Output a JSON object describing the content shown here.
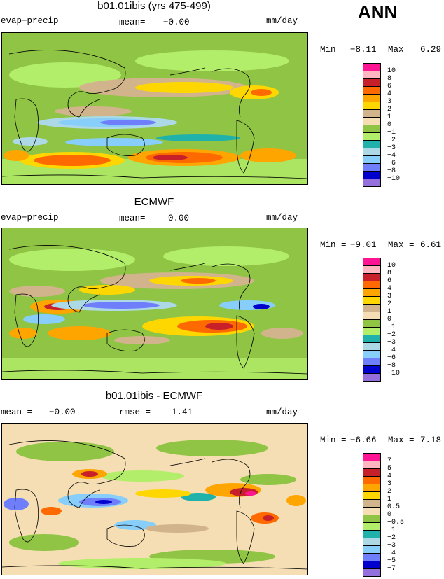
{
  "season": "ANN",
  "panels": [
    {
      "title": "b01.01ibis (yrs 475-499)",
      "left_label": "evap−precip",
      "center_label": "mean=",
      "center_value": "−0.00",
      "extra_label": "",
      "extra_value": "",
      "units": "mm/day",
      "min_label": "Min =",
      "min_value": "−8.11",
      "max_label": "Max =",
      "max_value": "6.29",
      "colorbar": {
        "ticks": [
          "10",
          "8",
          "6",
          "4",
          "3",
          "2",
          "1",
          "0",
          "−1",
          "−2",
          "−3",
          "−4",
          "−6",
          "−8",
          "−10"
        ],
        "colors": [
          "#ff1493",
          "#ffb6c1",
          "#c8202a",
          "#ff6a00",
          "#ffa500",
          "#ffd700",
          "#d2b48c",
          "#f5deb3",
          "#8fc444",
          "#b3ee6a",
          "#20b2aa",
          "#add8e6",
          "#87cefa",
          "#6f7ffb",
          "#0000cd",
          "#9370db"
        ]
      }
    },
    {
      "title": "ECMWF",
      "left_label": "evap−precip",
      "center_label": "mean=",
      "center_value": "0.00",
      "extra_label": "",
      "extra_value": "",
      "units": "mm/day",
      "min_label": "Min =",
      "min_value": "−9.01",
      "max_label": "Max =",
      "max_value": "6.61",
      "colorbar": {
        "ticks": [
          "10",
          "8",
          "6",
          "4",
          "3",
          "2",
          "1",
          "0",
          "−1",
          "−2",
          "−3",
          "−4",
          "−6",
          "−8",
          "−10"
        ],
        "colors": [
          "#ff1493",
          "#ffb6c1",
          "#c8202a",
          "#ff6a00",
          "#ffa500",
          "#ffd700",
          "#d2b48c",
          "#f5deb3",
          "#8fc444",
          "#b3ee6a",
          "#20b2aa",
          "#add8e6",
          "#87cefa",
          "#6f7ffb",
          "#0000cd",
          "#9370db"
        ]
      }
    },
    {
      "title": "b01.01ibis - ECMWF",
      "left_label": "mean =",
      "center_label": "",
      "center_value": "−0.00",
      "extra_label": "rmse =",
      "extra_value": "1.41",
      "units": "mm/day",
      "min_label": "Min =",
      "min_value": "−6.66",
      "max_label": "Max =",
      "max_value": "7.18",
      "colorbar": {
        "ticks": [
          "7",
          "5",
          "4",
          "3",
          "2",
          "1",
          "0.5",
          "0",
          "−0.5",
          "−1",
          "−2",
          "−3",
          "−4",
          "−5",
          "−7"
        ],
        "colors": [
          "#ff1493",
          "#ffb6c1",
          "#c8202a",
          "#ff6a00",
          "#ffa500",
          "#ffd700",
          "#d2b48c",
          "#f5deb3",
          "#8fc444",
          "#b3ee6a",
          "#20b2aa",
          "#add8e6",
          "#87cefa",
          "#6f7ffb",
          "#0000cd",
          "#9370db"
        ]
      }
    }
  ]
}
